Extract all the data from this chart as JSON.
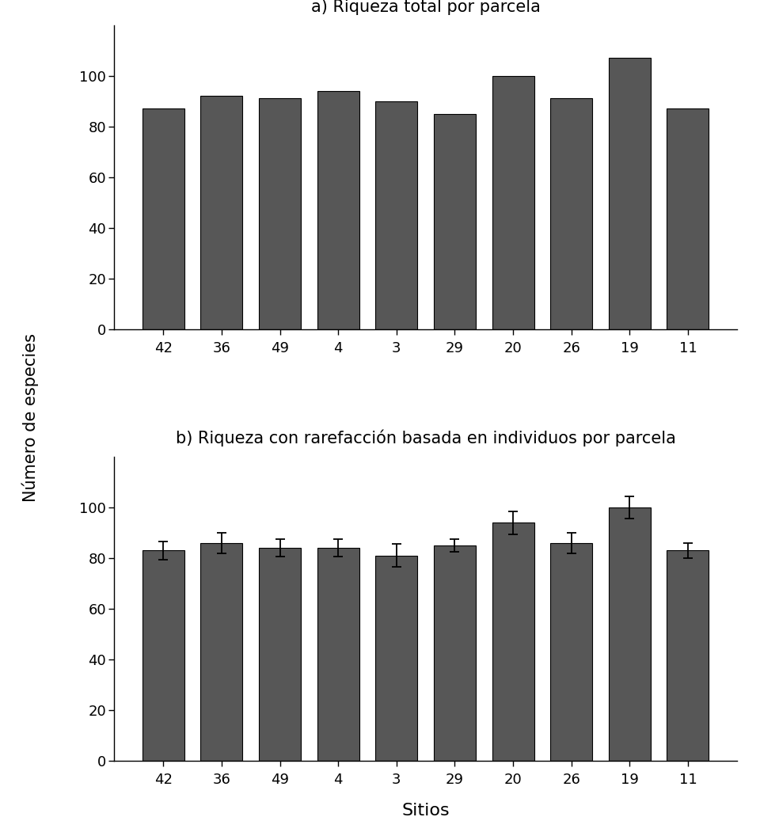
{
  "categories": [
    "42",
    "36",
    "49",
    "4",
    "3",
    "29",
    "20",
    "26",
    "19",
    "11"
  ],
  "values_a": [
    87,
    92,
    91,
    94,
    90,
    85,
    100,
    91,
    107,
    87
  ],
  "values_b": [
    83,
    86,
    84,
    84,
    81,
    85,
    94,
    86,
    100,
    83
  ],
  "errors_b": [
    3.5,
    4.0,
    3.5,
    3.5,
    4.5,
    2.5,
    4.5,
    4.0,
    4.5,
    3.0
  ],
  "bar_color": "#575757",
  "title_a": "a) Riqueza total por parcela",
  "title_b": "b) Riqueza con rarefacción basada en individuos por parcela",
  "shared_ylabel": "Número de especies",
  "xlabel": "Sitios",
  "ylim": [
    0,
    120
  ],
  "yticks": [
    0,
    20,
    40,
    60,
    80,
    100
  ],
  "background_color": "#ffffff",
  "title_fontsize": 15,
  "label_fontsize": 15,
  "tick_fontsize": 13,
  "xlabel_fontsize": 16
}
